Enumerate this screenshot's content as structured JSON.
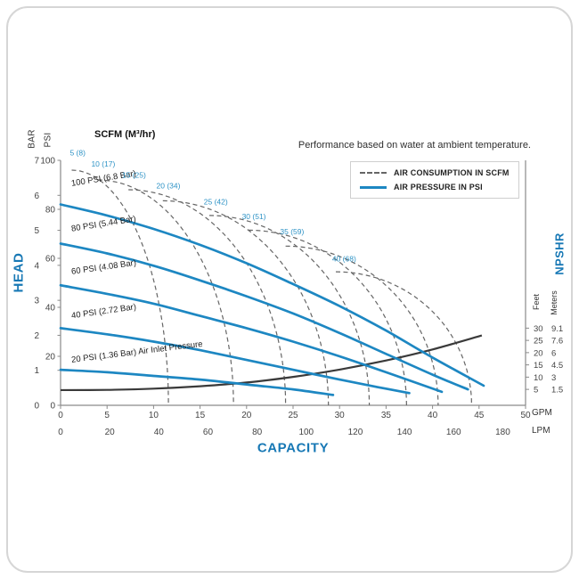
{
  "colors": {
    "accent_blue": "#1d87c2",
    "label_blue": "#2e93c6",
    "title_blue": "#1778b5",
    "dash_gray": "#666666",
    "npshr_dark": "#3a3a3a",
    "axis": "#8a8a8a",
    "tick_text": "#444444"
  },
  "header": {
    "scfm_label": "SCFM (M³/hr)",
    "note": "Performance based on water at ambient temperature."
  },
  "legend": {
    "items": [
      {
        "label": "AIR CONSUMPTION IN SCFM",
        "style": "dashed"
      },
      {
        "label": "AIR PRESSURE IN PSI",
        "style": "solid"
      }
    ]
  },
  "axis_labels": {
    "head": "HEAD",
    "bar": "BAR",
    "psi": "PSI",
    "capacity": "CAPACITY",
    "gpm": "GPM",
    "lpm": "LPM",
    "npshr": "NPSHR",
    "feet": "Feet",
    "meters": "Meters"
  },
  "chart_data": {
    "type": "line",
    "title": "Performance based on water at ambient temperature.",
    "xlabel": "CAPACITY",
    "ylabel": "HEAD",
    "x_axis": {
      "units": [
        {
          "name": "GPM",
          "ticks": [
            0,
            5,
            10,
            15,
            20,
            25,
            30,
            35,
            40,
            45,
            50
          ],
          "range": [
            0,
            50
          ]
        },
        {
          "name": "LPM",
          "ticks": [
            0,
            20,
            40,
            60,
            80,
            100,
            120,
            140,
            160,
            180
          ],
          "range": [
            0,
            189.3
          ]
        }
      ]
    },
    "y_axis": {
      "units": [
        {
          "name": "PSI",
          "ticks": [
            0,
            20,
            40,
            60,
            80,
            100
          ],
          "range": [
            0,
            100
          ]
        },
        {
          "name": "BAR",
          "ticks": [
            0,
            1,
            2,
            3,
            4,
            5,
            6,
            7
          ],
          "range": [
            0,
            7
          ]
        }
      ]
    },
    "npshr_axis": {
      "label": "NPSHR",
      "rows": [
        {
          "feet": 30,
          "meters": "9.1"
        },
        {
          "feet": 25,
          "meters": "7.6"
        },
        {
          "feet": 20,
          "meters": "6"
        },
        {
          "feet": 15,
          "meters": "4.5"
        },
        {
          "feet": 10,
          "meters": "3"
        },
        {
          "feet": 5,
          "meters": "1.5"
        }
      ]
    },
    "series_air_pressure": [
      {
        "name": "100 PSI (6.8 Bar)",
        "air_inlet_psi": 100,
        "label": "100 PSI (6.8 Bar)",
        "label_at": [
          1.2,
          89.5
        ],
        "label_angle": -9,
        "points": [
          [
            0,
            82
          ],
          [
            5,
            77.5
          ],
          [
            10,
            72
          ],
          [
            15,
            65.5
          ],
          [
            20,
            58
          ],
          [
            25,
            49.5
          ],
          [
            30,
            40.5
          ],
          [
            35,
            30.5
          ],
          [
            40,
            19.5
          ],
          [
            45.5,
            8
          ]
        ]
      },
      {
        "name": "80 PSI (5.44 Bar)",
        "air_inlet_psi": 80,
        "label": "80 PSI (5.44 Bar)",
        "label_at": [
          1.2,
          71
        ],
        "label_angle": -9,
        "points": [
          [
            0,
            66
          ],
          [
            5,
            62
          ],
          [
            10,
            57
          ],
          [
            15,
            51
          ],
          [
            20,
            44.5
          ],
          [
            25,
            37.5
          ],
          [
            30,
            29.5
          ],
          [
            35,
            21
          ],
          [
            40,
            12.5
          ],
          [
            43.8,
            6.5
          ]
        ]
      },
      {
        "name": "60 PSI (4.08 Bar)",
        "air_inlet_psi": 60,
        "label": "60 PSI (4.08 Bar)",
        "label_at": [
          1.2,
          53.5
        ],
        "label_angle": -8,
        "points": [
          [
            0,
            49
          ],
          [
            5,
            45.5
          ],
          [
            10,
            41.5
          ],
          [
            15,
            36.5
          ],
          [
            20,
            31.5
          ],
          [
            25,
            26
          ],
          [
            30,
            20
          ],
          [
            35,
            13.5
          ],
          [
            41,
            5.5
          ]
        ]
      },
      {
        "name": "40 PSI (2.72 Bar)",
        "air_inlet_psi": 40,
        "label": "40 PSI (2.72 Bar)",
        "label_at": [
          1.2,
          35.5
        ],
        "label_angle": -8,
        "points": [
          [
            0,
            31.5
          ],
          [
            5,
            29
          ],
          [
            10,
            26
          ],
          [
            15,
            22.5
          ],
          [
            20,
            18.5
          ],
          [
            25,
            14.5
          ],
          [
            30,
            10.5
          ],
          [
            34,
            7.5
          ],
          [
            37.5,
            5
          ]
        ]
      },
      {
        "name": "20 PSI (1.36 Bar)",
        "air_inlet_psi": 20,
        "label": "20 PSI (1.36 Bar) Air Inlet Pressure",
        "label_at": [
          1.2,
          17.5
        ],
        "label_angle": -7,
        "points": [
          [
            0,
            14.5
          ],
          [
            5,
            13.5
          ],
          [
            10,
            12
          ],
          [
            15,
            10.5
          ],
          [
            20,
            8.5
          ],
          [
            25,
            6.5
          ],
          [
            29.3,
            4.2
          ]
        ]
      }
    ],
    "series_air_consumption": [
      {
        "name": "5 (8)",
        "scfm": 5,
        "m3hr": 8,
        "label": "5 (8)",
        "label_at": [
          1.0,
          102
        ],
        "start": [
          1.2,
          96
        ],
        "x_end": 11.6
      },
      {
        "name": "10 (17)",
        "scfm": 10,
        "m3hr": 17,
        "label": "10 (17)",
        "label_at": [
          3.3,
          97.5
        ],
        "start": [
          4.0,
          92
        ],
        "x_end": 18.6
      },
      {
        "name": "15 (25)",
        "scfm": 15,
        "m3hr": 25,
        "label": "15 (25)",
        "label_at": [
          6.6,
          93
        ],
        "start": [
          7.3,
          88
        ],
        "x_end": 24.2
      },
      {
        "name": "20 (34)",
        "scfm": 20,
        "m3hr": 34,
        "label": "20 (34)",
        "label_at": [
          10.3,
          88.5
        ],
        "start": [
          11.0,
          83.5
        ],
        "x_end": 28.8
      },
      {
        "name": "25 (42)",
        "scfm": 25,
        "m3hr": 42,
        "label": "25 (42)",
        "label_at": [
          15.4,
          82
        ],
        "start": [
          16.0,
          77.5
        ],
        "x_end": 33.2
      },
      {
        "name": "30 (51)",
        "scfm": 30,
        "m3hr": 51,
        "label": "30 (51)",
        "label_at": [
          19.5,
          76
        ],
        "start": [
          20.2,
          71.5
        ],
        "x_end": 37.2
      },
      {
        "name": "35 (59)",
        "scfm": 35,
        "m3hr": 59,
        "label": "35 (59)",
        "label_at": [
          23.6,
          69.8
        ],
        "start": [
          24.2,
          65
        ],
        "x_end": 40.6
      },
      {
        "name": "40 (68)",
        "scfm": 40,
        "m3hr": 68,
        "label": "40 (68)",
        "label_at": [
          29.2,
          58.8
        ],
        "start": [
          29.6,
          54.5
        ],
        "x_end": 44.2
      }
    ],
    "series_npshr": {
      "name": "NPSHR",
      "points": [
        [
          0,
          6.2
        ],
        [
          5,
          6.3
        ],
        [
          10,
          6.8
        ],
        [
          15,
          7.8
        ],
        [
          20,
          9.3
        ],
        [
          25,
          11.6
        ],
        [
          30,
          14.6
        ],
        [
          35,
          18.3
        ],
        [
          40,
          22.8
        ],
        [
          45.3,
          28.5
        ]
      ]
    }
  }
}
